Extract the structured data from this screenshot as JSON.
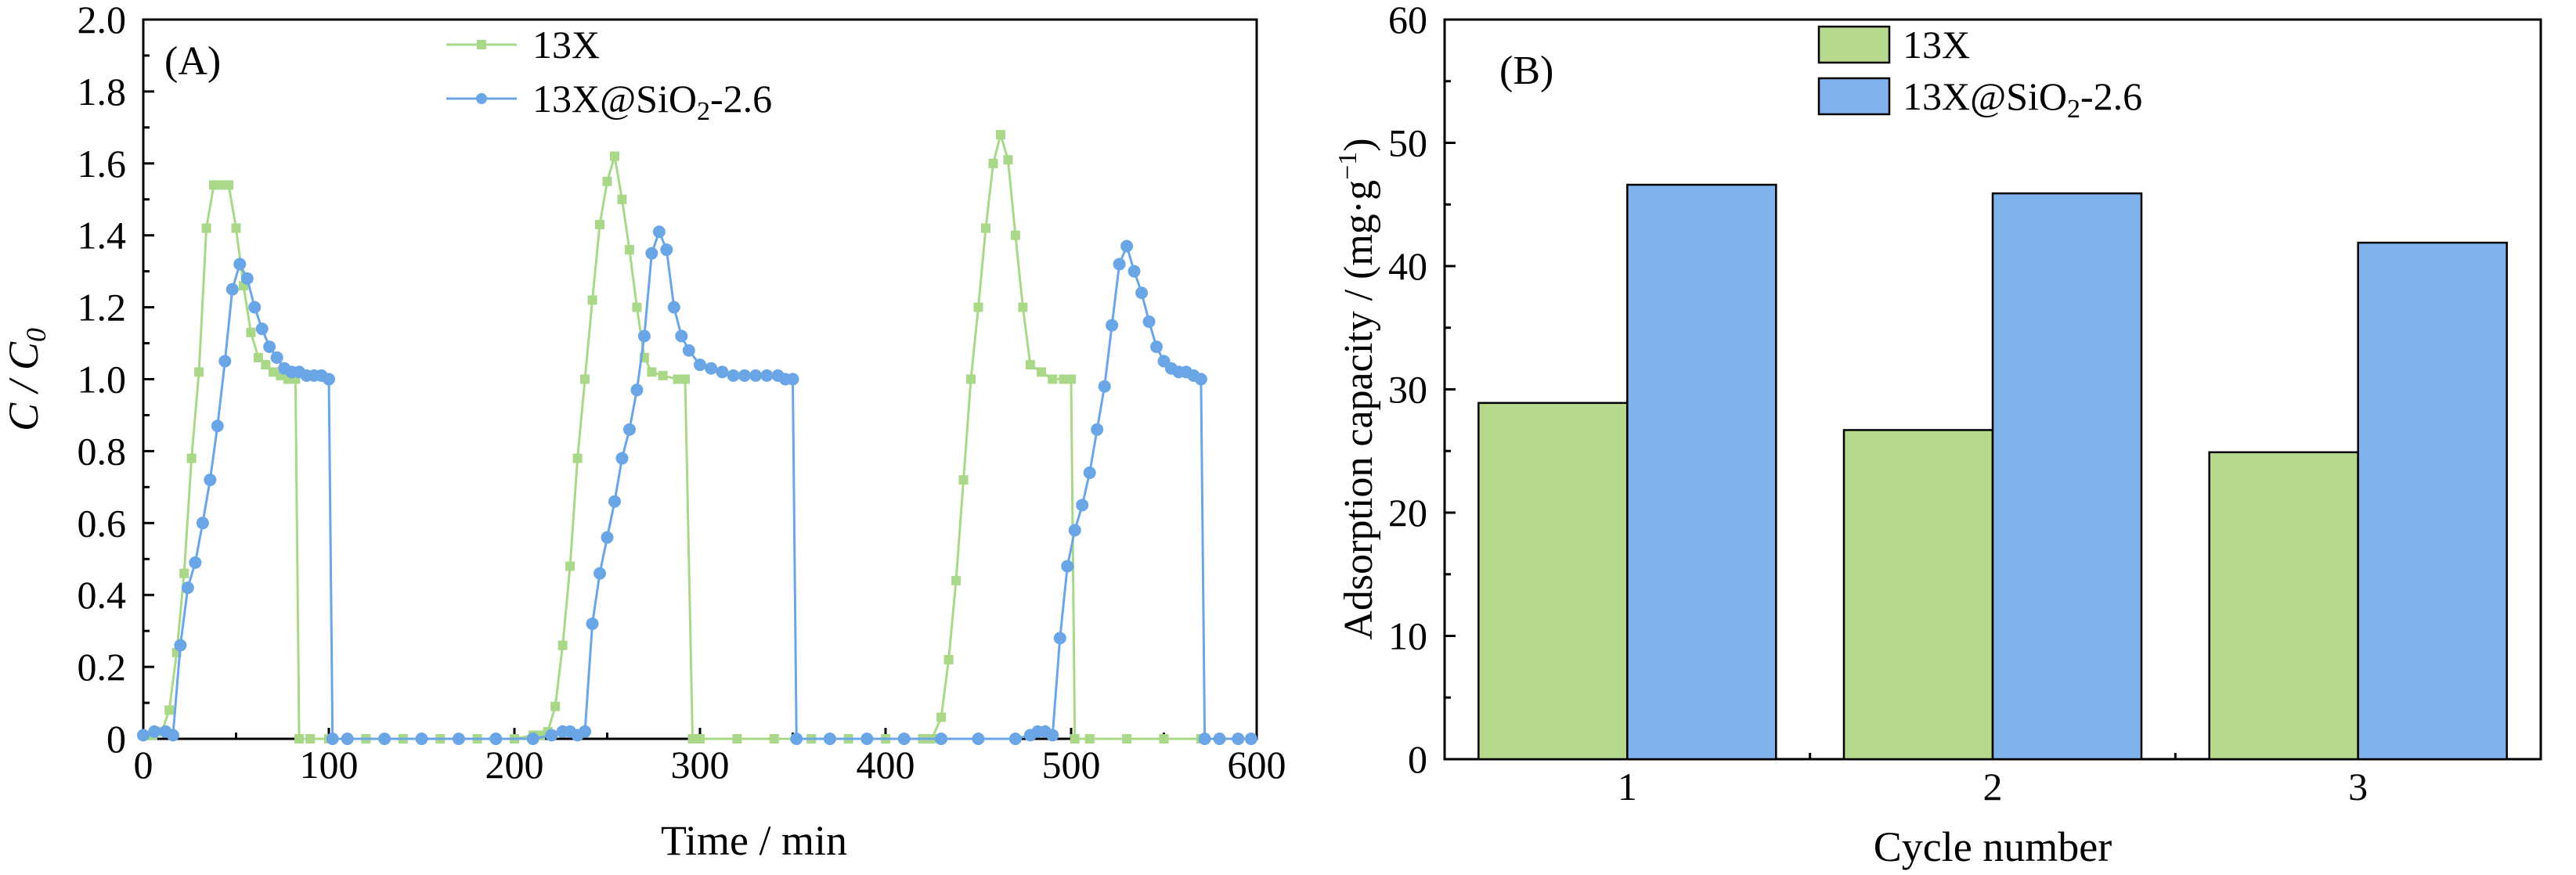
{
  "colors": {
    "green": "#b6d98e",
    "green_line": "#a8d888",
    "blue": "#7fb1ec",
    "blue_line": "#6aa6e6",
    "axis": "#000000"
  },
  "chart_data": [
    {
      "type": "line",
      "panel_label": "(A)",
      "xlabel": "Time / min",
      "ylabel": "C / C0",
      "xlim": [
        0,
        600
      ],
      "ylim": [
        0,
        2.0
      ],
      "xticks": [
        0,
        100,
        200,
        300,
        400,
        500,
        600
      ],
      "yticks": [
        0,
        0.2,
        0.4,
        0.6,
        0.8,
        1.0,
        1.2,
        1.4,
        1.6,
        1.8,
        2.0
      ],
      "ytick_labels": [
        "0",
        "0.2",
        "0.4",
        "0.6",
        "0.8",
        "1.0",
        "1.2",
        "1.4",
        "1.6",
        "1.8",
        "2.0"
      ],
      "legend_position": "top-center",
      "series": [
        {
          "name": "13X",
          "marker": "square",
          "color": "#a8d888",
          "x": [
            0,
            5,
            10,
            14,
            18,
            22,
            26,
            30,
            34,
            38,
            42,
            46,
            50,
            54,
            58,
            62,
            66,
            70,
            74,
            78,
            82,
            84,
            90,
            100,
            120,
            140,
            160,
            180,
            200,
            210,
            214,
            218,
            222,
            226,
            230,
            234,
            238,
            242,
            246,
            250,
            254,
            258,
            262,
            266,
            270,
            274,
            280,
            288,
            292,
            296,
            300,
            320,
            340,
            360,
            380,
            400,
            420,
            425,
            430,
            434,
            438,
            442,
            446,
            450,
            454,
            458,
            462,
            466,
            470,
            474,
            478,
            484,
            490,
            496,
            500,
            502,
            510,
            530,
            550,
            570,
            590,
            597
          ],
          "y": [
            0.01,
            0.01,
            0.02,
            0.08,
            0.24,
            0.46,
            0.78,
            1.02,
            1.42,
            1.54,
            1.54,
            1.54,
            1.42,
            1.26,
            1.13,
            1.06,
            1.04,
            1.02,
            1.01,
            1.0,
            1.0,
            0.0,
            0.0,
            0.0,
            0.0,
            0.0,
            0.0,
            0.0,
            0.0,
            0.01,
            0.01,
            0.02,
            0.09,
            0.26,
            0.48,
            0.78,
            1.0,
            1.22,
            1.43,
            1.55,
            1.62,
            1.5,
            1.36,
            1.2,
            1.06,
            1.02,
            1.01,
            1.0,
            1.0,
            0.0,
            0.0,
            0.0,
            0.0,
            0.0,
            0.0,
            0.0,
            0.0,
            0.0,
            0.06,
            0.22,
            0.44,
            0.72,
            1.0,
            1.2,
            1.42,
            1.6,
            1.68,
            1.61,
            1.4,
            1.2,
            1.04,
            1.02,
            1.0,
            1.0,
            1.0,
            0.0,
            0.0,
            0.0,
            0.0,
            0.0,
            0.0,
            0.0
          ]
        },
        {
          "name": "13X@SiO2-2.6",
          "marker": "circle",
          "color": "#6aa6e6",
          "x": [
            0,
            6,
            12,
            16,
            20,
            24,
            28,
            32,
            36,
            40,
            44,
            48,
            52,
            56,
            60,
            64,
            68,
            72,
            76,
            80,
            84,
            88,
            92,
            96,
            100,
            102,
            110,
            130,
            150,
            170,
            190,
            210,
            220,
            226,
            230,
            234,
            238,
            242,
            246,
            250,
            254,
            258,
            262,
            266,
            270,
            274,
            278,
            282,
            286,
            290,
            294,
            300,
            306,
            312,
            318,
            324,
            330,
            336,
            342,
            346,
            350,
            352,
            370,
            390,
            410,
            430,
            450,
            470,
            478,
            482,
            486,
            490,
            494,
            498,
            502,
            506,
            510,
            514,
            518,
            522,
            526,
            530,
            534,
            538,
            542,
            546,
            550,
            554,
            558,
            562,
            566,
            570,
            572,
            580,
            590,
            597
          ],
          "y": [
            0.01,
            0.02,
            0.02,
            0.01,
            0.26,
            0.42,
            0.49,
            0.6,
            0.72,
            0.87,
            1.05,
            1.25,
            1.32,
            1.28,
            1.2,
            1.14,
            1.09,
            1.06,
            1.03,
            1.02,
            1.02,
            1.01,
            1.01,
            1.01,
            1.0,
            0.0,
            0.0,
            0.0,
            0.0,
            0.0,
            0.0,
            0.0,
            0.01,
            0.02,
            0.02,
            0.01,
            0.02,
            0.32,
            0.46,
            0.56,
            0.66,
            0.78,
            0.86,
            0.97,
            1.12,
            1.35,
            1.41,
            1.36,
            1.2,
            1.12,
            1.08,
            1.04,
            1.03,
            1.02,
            1.01,
            1.01,
            1.01,
            1.01,
            1.01,
            1.0,
            1.0,
            0.0,
            0.0,
            0.0,
            0.0,
            0.0,
            0.0,
            0.0,
            0.01,
            0.02,
            0.02,
            0.01,
            0.28,
            0.48,
            0.58,
            0.65,
            0.74,
            0.86,
            0.98,
            1.15,
            1.32,
            1.37,
            1.3,
            1.24,
            1.16,
            1.09,
            1.05,
            1.03,
            1.02,
            1.02,
            1.01,
            1.0,
            0.0,
            0.0,
            0.0,
            0.0
          ]
        }
      ]
    },
    {
      "type": "bar",
      "panel_label": "(B)",
      "xlabel": "Cycle number",
      "ylabel": "Adsorption capacity / (mg·g",
      "ylabel_superscript": "−1",
      "ylabel_suffix": ")",
      "categories": [
        "1",
        "2",
        "3"
      ],
      "ylim": [
        0,
        60
      ],
      "yticks": [
        0,
        10,
        20,
        30,
        40,
        50,
        60
      ],
      "legend_position": "top-center",
      "series": [
        {
          "name": "13X",
          "color": "#b6d98e",
          "values": [
            28.9,
            26.7,
            24.9
          ]
        },
        {
          "name": "13X@SiO2-2.6",
          "color": "#7fb1ec",
          "values": [
            46.6,
            45.9,
            41.9
          ]
        }
      ]
    }
  ]
}
